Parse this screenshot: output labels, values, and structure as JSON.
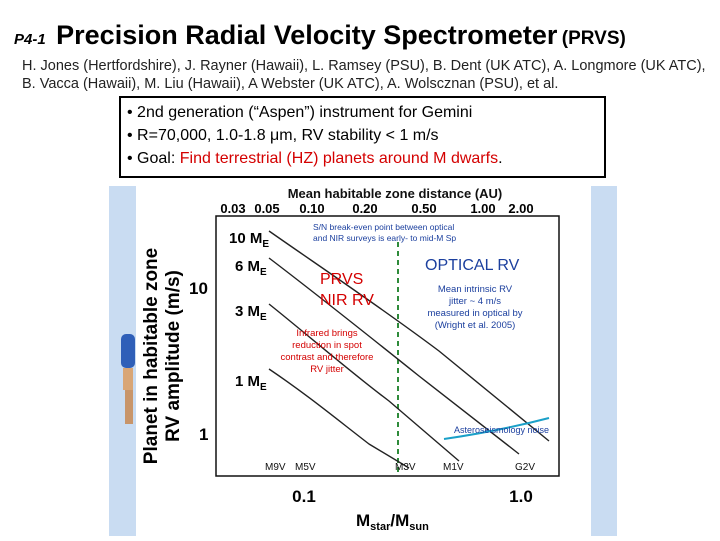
{
  "header": {
    "number": "P4-1",
    "title": "Precision Radial Velocity Spectrometer",
    "acronym": "(PRVS)"
  },
  "authors": "H. Jones (Hertfordshire), J. Rayner (Hawaii), L. Ramsey (PSU), B. Dent (UK ATC), A. Longmore (UK ATC), B. Vacca (Hawaii), M. Liu (Hawaii), A Webster (UK ATC), A. Wolscznan (PSU), et al.",
  "bullets": {
    "b1": "• 2nd generation (“Aspen”) instrument for Gemini",
    "b2": "• R=70,000, 1.0-1.8 μm, RV stability < 1 m/s",
    "b3_prefix": "• Goal: ",
    "b3_red": "Find terrestrial (HZ) planets around M dwarfs",
    "b3_suffix": "."
  },
  "figure": {
    "top_axis_label": "Mean habitable zone distance (AU)",
    "top_ticks": [
      "0.03",
      "0.05",
      "0.10",
      "0.20",
      "0.50",
      "1.00",
      "2.00"
    ],
    "y_label_line1": "Planet in habitable zone",
    "y_label_line2": "RV amplitude (m/s)",
    "y_ticks": [
      "10",
      "1"
    ],
    "x_ticks": [
      "0.1",
      "1.0"
    ],
    "x_label_main": "M",
    "x_label_sub1": "star",
    "x_label_sep": "/M",
    "x_label_sub2": "sun",
    "planet_labels": [
      {
        "n": "10 M",
        "s": "E"
      },
      {
        "n": "6 M",
        "s": "E"
      },
      {
        "n": "3 M",
        "s": "E"
      },
      {
        "n": "1 M",
        "s": "E"
      }
    ],
    "sn_note_1": "S/N break-even point between optical",
    "sn_note_2": "and NIR surveys is early- to mid-M Sp",
    "prvs_1": "PRVS",
    "prvs_2": "NIR RV",
    "optical_title": "OPTICAL RV",
    "jitter_1": "Mean intrinsic RV",
    "jitter_2": "jitter ~ 4 m/s",
    "jitter_3": "measured in optical by",
    "jitter_4": "(Wright et al. 2005)",
    "ir_1": "Infrared brings",
    "ir_2": "reduction in spot",
    "ir_3": "contrast and therefore",
    "ir_4": "RV jitter",
    "noise_label": "Asteroseismology noise",
    "spectral_types": [
      "M9V",
      "M5V",
      "M3V",
      "M1V",
      "G2V"
    ],
    "colors": {
      "red": "#d40000",
      "blue": "#1b3f9e",
      "green": "#2e8b3a",
      "cyan": "#1aa0c8",
      "panel": "#c9dcf2"
    }
  }
}
